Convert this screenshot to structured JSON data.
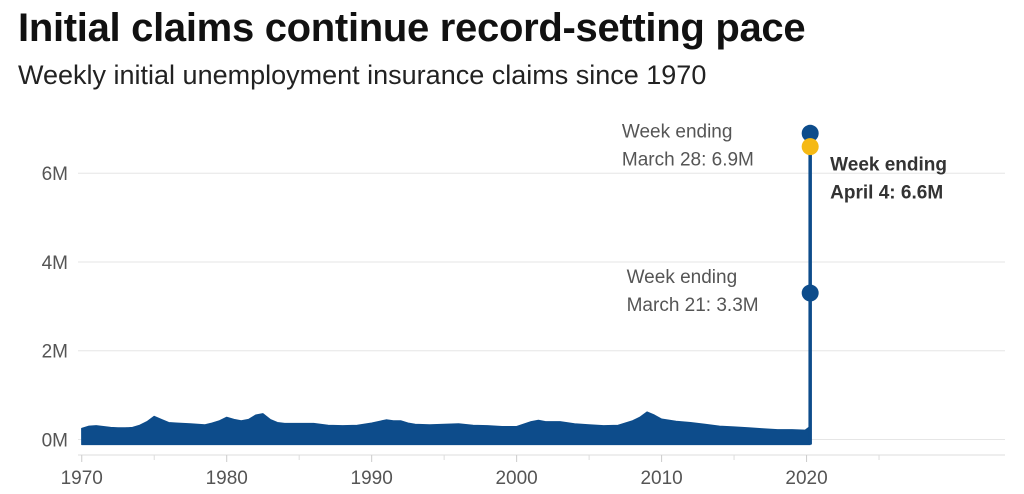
{
  "chart_data": {
    "type": "area",
    "title": "Initial claims continue record-setting pace",
    "subtitle": "Weekly initial unemployment insurance claims since 1970",
    "xlabel": "",
    "ylabel": "",
    "xlim": [
      1968.5,
      2035
    ],
    "ylim": [
      -0.35,
      7.2
    ],
    "x_ticks": [
      {
        "value": 1970,
        "label": "1970"
      },
      {
        "value": 1980,
        "label": "1980"
      },
      {
        "value": 1990,
        "label": "1990"
      },
      {
        "value": 2000,
        "label": "2000"
      },
      {
        "value": 2010,
        "label": "2010"
      },
      {
        "value": 2020,
        "label": "2020"
      }
    ],
    "y_ticks": [
      {
        "value": 0,
        "label": "0M"
      },
      {
        "value": 2,
        "label": "2M"
      },
      {
        "value": 4,
        "label": "4M"
      },
      {
        "value": 6,
        "label": "6M"
      }
    ],
    "grid": "horizontal",
    "color": "#0d4c8b",
    "highlight_color": "#f5b915",
    "series": [
      {
        "x": [
          1970,
          1970.5,
          1971,
          1971.5,
          1972,
          1972.5,
          1973,
          1973.5,
          1974,
          1974.5,
          1975,
          1975.5,
          1976,
          1976.5,
          1977,
          1977.5,
          1978,
          1978.5,
          1979,
          1979.5,
          1980,
          1980.5,
          1981,
          1981.5,
          1982,
          1982.5,
          1983,
          1983.5,
          1984,
          1985,
          1986,
          1987,
          1988,
          1989,
          1990,
          1991,
          1991.5,
          1992,
          1992.5,
          1993,
          1994,
          1995,
          1996,
          1997,
          1998,
          1999,
          2000,
          2001,
          2001.5,
          2002,
          2003,
          2004,
          2005,
          2006,
          2007,
          2008,
          2008.5,
          2009,
          2009.5,
          2010,
          2011,
          2012,
          2013,
          2014,
          2015,
          2016,
          2017,
          2018,
          2019,
          2019.9,
          2020.2,
          2020.21,
          2020.23,
          2020.25
        ],
        "y": [
          0.25,
          0.3,
          0.31,
          0.29,
          0.27,
          0.26,
          0.26,
          0.27,
          0.32,
          0.4,
          0.52,
          0.45,
          0.38,
          0.37,
          0.36,
          0.35,
          0.34,
          0.33,
          0.37,
          0.42,
          0.5,
          0.45,
          0.42,
          0.45,
          0.55,
          0.58,
          0.45,
          0.38,
          0.36,
          0.36,
          0.36,
          0.32,
          0.31,
          0.32,
          0.37,
          0.44,
          0.42,
          0.42,
          0.37,
          0.34,
          0.33,
          0.34,
          0.35,
          0.32,
          0.31,
          0.29,
          0.29,
          0.4,
          0.43,
          0.4,
          0.4,
          0.35,
          0.33,
          0.31,
          0.32,
          0.42,
          0.5,
          0.62,
          0.55,
          0.46,
          0.41,
          0.38,
          0.34,
          0.3,
          0.28,
          0.26,
          0.24,
          0.22,
          0.22,
          0.21,
          0.28,
          3.3,
          6.9,
          6.6
        ]
      }
    ],
    "annotations": [
      {
        "x": 2020.21,
        "y": 3.3,
        "text": [
          "Week ending",
          "March 21: 3.3M"
        ],
        "color": "#0d4c8b",
        "bold": false
      },
      {
        "x": 2020.23,
        "y": 6.9,
        "text": [
          "Week ending",
          "March 28: 6.9M"
        ],
        "color": "#0d4c8b",
        "bold": false
      },
      {
        "x": 2020.25,
        "y": 6.6,
        "text": [
          "Week ending",
          "April 4: 6.6M"
        ],
        "color": "#f5b915",
        "bold": true
      }
    ]
  }
}
